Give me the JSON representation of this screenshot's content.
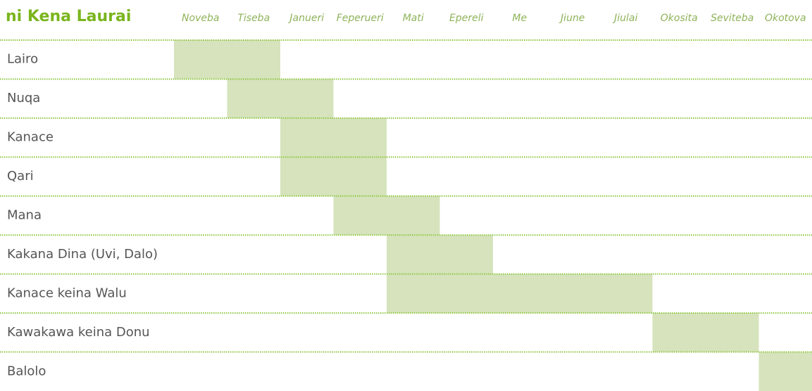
{
  "chart_data": {
    "type": "gantt",
    "title": "ni Kena Laurai",
    "categories": [
      "Noveba",
      "Tiseba",
      "Janueri",
      "Feperueri",
      "Mati",
      "Epereli",
      "Me",
      "Jiune",
      "Jiulai",
      "Okosita",
      "Seviteba",
      "Okotova"
    ],
    "xlim": [
      0,
      12
    ],
    "color": "#d6e3bc",
    "tasks": [
      {
        "name": "Lairo",
        "start": 0,
        "end": 2
      },
      {
        "name": "Nuqa",
        "start": 1,
        "end": 3
      },
      {
        "name": "Kanace",
        "start": 2,
        "end": 4
      },
      {
        "name": "Qari",
        "start": 2,
        "end": 4
      },
      {
        "name": "Mana",
        "start": 3,
        "end": 5
      },
      {
        "name": "Kakana Dina (Uvi, Dalo)",
        "start": 4,
        "end": 6
      },
      {
        "name": "Kanace keina Walu",
        "start": 4,
        "end": 9
      },
      {
        "name": "Kawakawa keina Donu",
        "start": 9,
        "end": 11
      },
      {
        "name": "Balolo",
        "start": 11,
        "end": 12
      }
    ]
  }
}
